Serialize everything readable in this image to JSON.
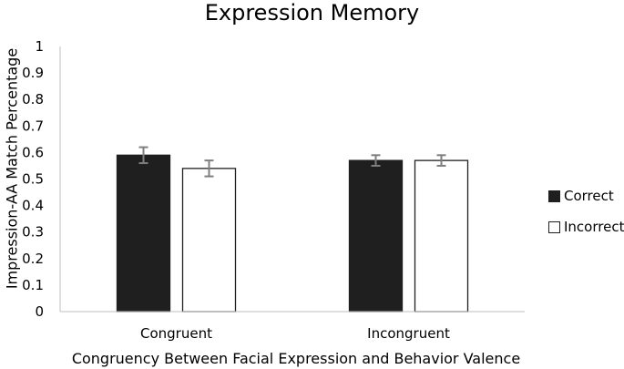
{
  "chart_data": {
    "type": "bar",
    "title": "Expression Memory",
    "xlabel": "Congruency Between Facial Expression and Behavior Valence",
    "ylabel": "Impression-AA Match Percentage",
    "categories": [
      "Congruent",
      "Incongruent"
    ],
    "ylim": [
      0,
      1
    ],
    "yticks": [
      "0",
      "0.1",
      "0.2",
      "0.3",
      "0.4",
      "0.5",
      "0.6",
      "0.7",
      "0.8",
      "0.9",
      "1"
    ],
    "grid": false,
    "legend_position": "right",
    "series": [
      {
        "name": "Correct",
        "values": [
          0.59,
          0.57
        ],
        "errors": [
          0.03,
          0.02
        ],
        "color": "#1f1f1f"
      },
      {
        "name": "Incorrect",
        "values": [
          0.54,
          0.57
        ],
        "errors": [
          0.03,
          0.02
        ],
        "color": "#ffffff"
      }
    ]
  }
}
